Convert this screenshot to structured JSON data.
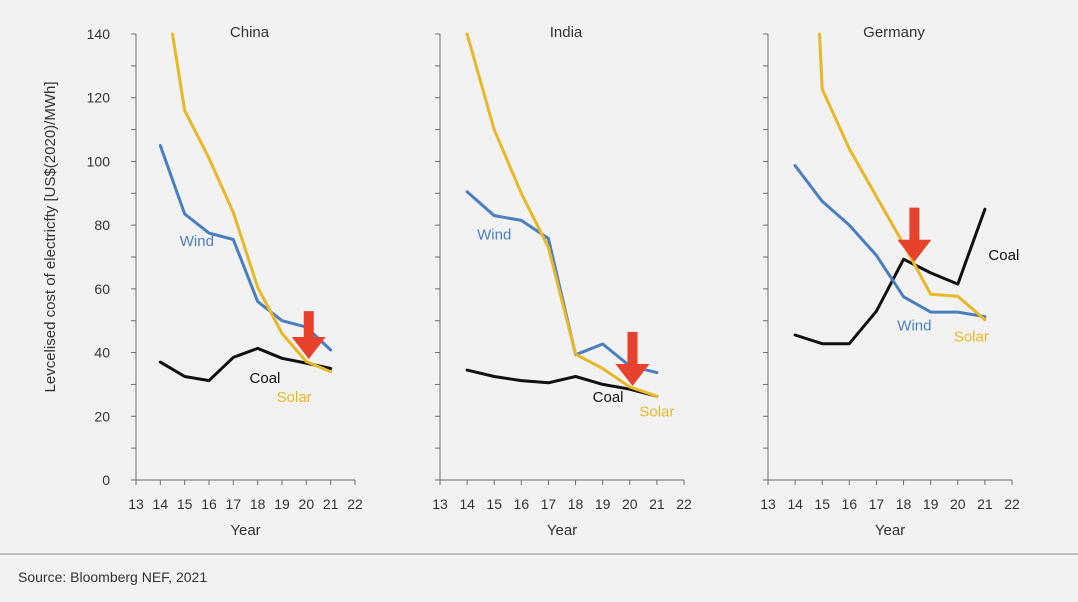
{
  "source": "Source: Bloomberg NEF, 2021",
  "colors": {
    "coal": "#111111",
    "wind": "#4a7ec1",
    "solar": "#e8b827",
    "arrow": "#e8412c",
    "axis": "#6e6e6e"
  },
  "ylabel": "Levcelised cost of electricfty  [US$(2020)/MWh]",
  "chart_data": [
    {
      "type": "line",
      "title": "China",
      "xlabel": "Year",
      "xlim": [
        13,
        22
      ],
      "ylim": [
        0,
        140
      ],
      "xticks": [
        "13",
        "14",
        "15",
        "16",
        "17",
        "18",
        "19",
        "20",
        "21",
        "22"
      ],
      "yticks": [
        "0",
        "20",
        "40",
        "60",
        "80",
        "100",
        "120",
        "140"
      ],
      "series": [
        {
          "name": "Coal",
          "color": "#111111",
          "x": [
            14,
            15,
            16,
            17,
            18,
            19,
            20,
            21
          ],
          "y": [
            37,
            32.5,
            31.2,
            38.5,
            41.3,
            38.2,
            36.7,
            35
          ]
        },
        {
          "name": "Wind",
          "color": "#4a7ec1",
          "x": [
            14,
            15,
            16,
            17,
            18,
            19,
            20,
            21
          ],
          "y": [
            105,
            83.5,
            77.5,
            75.5,
            56,
            50,
            48,
            40.8
          ]
        },
        {
          "name": "Solar",
          "color": "#e8b827",
          "x": [
            14.5,
            15,
            16,
            17,
            18,
            19,
            20,
            21
          ],
          "y": [
            140,
            116,
            101,
            84,
            60.5,
            46,
            37.2,
            34
          ]
        }
      ],
      "annotations": [
        {
          "text": "Wind",
          "x": 15.5,
          "y": 73.5,
          "color": "#4a7ec1"
        },
        {
          "text": "Coal",
          "x": 18.3,
          "y": 30.5,
          "color": "#111111"
        },
        {
          "text": "Solar",
          "x": 19.5,
          "y": 24.5,
          "color": "#e8b827"
        }
      ],
      "arrow": {
        "x": 20.1,
        "y_from": 53,
        "y_to": 38
      }
    },
    {
      "type": "line",
      "title": "India",
      "xlabel": "Year",
      "xlim": [
        13,
        22
      ],
      "ylim": [
        0,
        140
      ],
      "xticks": [
        "13",
        "14",
        "15",
        "16",
        "17",
        "18",
        "19",
        "20",
        "21",
        "22"
      ],
      "series": [
        {
          "name": "Coal",
          "color": "#111111",
          "x": [
            14,
            15,
            16,
            17,
            18,
            19,
            20,
            21
          ],
          "y": [
            34.5,
            32.5,
            31.2,
            30.5,
            32.5,
            30,
            28.5,
            26.3
          ]
        },
        {
          "name": "Wind",
          "color": "#4a7ec1",
          "x": [
            14,
            15,
            16,
            17,
            18,
            19,
            20,
            21
          ],
          "y": [
            90.5,
            83,
            81.5,
            75.8,
            39.3,
            42.7,
            35.8,
            33.7
          ]
        },
        {
          "name": "Solar",
          "color": "#e8b827",
          "x": [
            14,
            15,
            16,
            17,
            18,
            19,
            20,
            21
          ],
          "y": [
            140,
            110,
            90,
            73,
            39.5,
            35,
            29.2,
            26.3
          ]
        }
      ],
      "annotations": [
        {
          "text": "Wind",
          "x": 15,
          "y": 75.5,
          "color": "#4a7ec1"
        },
        {
          "text": "Coal",
          "x": 19.2,
          "y": 24.5,
          "color": "#111111"
        },
        {
          "text": "Solar",
          "x": 21,
          "y": 20,
          "color": "#e8b827"
        }
      ],
      "arrow": {
        "x": 20.1,
        "y_from": 46.5,
        "y_to": 29.5
      }
    },
    {
      "type": "line",
      "title": "Germany",
      "xlabel": "Year",
      "xlim": [
        13,
        22
      ],
      "ylim": [
        0,
        140
      ],
      "xticks": [
        "13",
        "14",
        "15",
        "16",
        "17",
        "18",
        "19",
        "20",
        "21",
        "22"
      ],
      "series": [
        {
          "name": "Coal",
          "color": "#111111",
          "x": [
            14,
            15,
            16,
            17,
            18,
            19,
            20,
            21
          ],
          "y": [
            45.5,
            42.8,
            42.8,
            53,
            69.3,
            65,
            61.5,
            85
          ]
        },
        {
          "name": "Wind",
          "color": "#4a7ec1",
          "x": [
            14,
            15,
            16,
            17,
            18,
            19,
            20,
            21
          ],
          "y": [
            98.7,
            87.5,
            80,
            70.5,
            57.5,
            52.7,
            52.7,
            51.3
          ]
        },
        {
          "name": "Solar",
          "color": "#e8b827",
          "x": [
            14.9,
            15,
            16,
            17,
            18,
            19,
            20,
            21
          ],
          "y": [
            140,
            122.7,
            104,
            89,
            74,
            58.3,
            57.7,
            50.3
          ]
        }
      ],
      "annotations": [
        {
          "text": "Coal",
          "x": 21.7,
          "y": 69,
          "color": "#111111"
        },
        {
          "text": "Wind",
          "x": 18.4,
          "y": 47,
          "color": "#4a7ec1"
        },
        {
          "text": "Solar",
          "x": 20.5,
          "y": 43.5,
          "color": "#e8b827"
        }
      ],
      "arrow": {
        "x": 18.4,
        "y_from": 85.5,
        "y_to": 68.5
      }
    }
  ]
}
